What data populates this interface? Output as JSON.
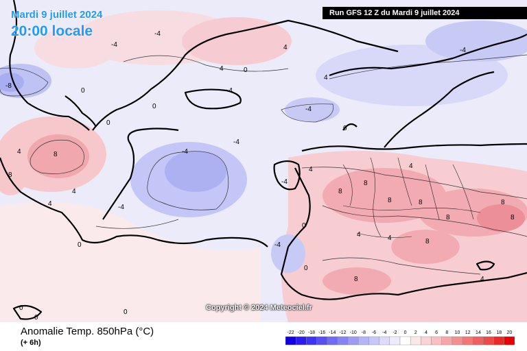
{
  "header": {
    "date": "Mardi 9 juillet 2024",
    "time": "20:00 locale",
    "run": "Run GFS 12 Z du Mardi 9 juillet 2024"
  },
  "copyright": "Copyright © 2024 Meteociel.fr",
  "footer": {
    "title": "Anomalie Temp. 850hPa (°C)",
    "subtitle": "(+ 6h)"
  },
  "scale": {
    "labels": [
      "-22",
      "-20",
      "-18",
      "-16",
      "-14",
      "-12",
      "-10",
      "-8",
      "-6",
      "-4",
      "-2",
      "0",
      "2",
      "4",
      "6",
      "8",
      "10",
      "12",
      "14",
      "16",
      "18",
      "20"
    ],
    "colors": [
      "#1000e8",
      "#2a1cf0",
      "#3c34f4",
      "#5450f4",
      "#6c6cf4",
      "#8484f4",
      "#9c9cf4",
      "#b4b4f8",
      "#c8c8f8",
      "#dcdcfa",
      "#ececfc",
      "#ffffff",
      "#fce8e8",
      "#fad4d4",
      "#f8c0c0",
      "#f6a8a8",
      "#f49090",
      "#f27878",
      "#f06060",
      "#ee4848",
      "#ec2828",
      "#e80000"
    ]
  },
  "contour_labels": [
    "-4",
    "-4",
    "-4",
    "-4",
    "-4",
    "-4",
    "-4",
    "-4",
    "-4",
    "-4",
    "0",
    "0",
    "0",
    "0",
    "0",
    "0",
    "0",
    "0",
    "0",
    "0",
    "4",
    "4",
    "4",
    "4",
    "4",
    "4",
    "4",
    "4",
    "4",
    "4",
    "8",
    "8",
    "8",
    "8",
    "8",
    "8",
    "8",
    "8",
    "8",
    "8",
    "-8",
    "0",
    "4",
    "8"
  ]
}
